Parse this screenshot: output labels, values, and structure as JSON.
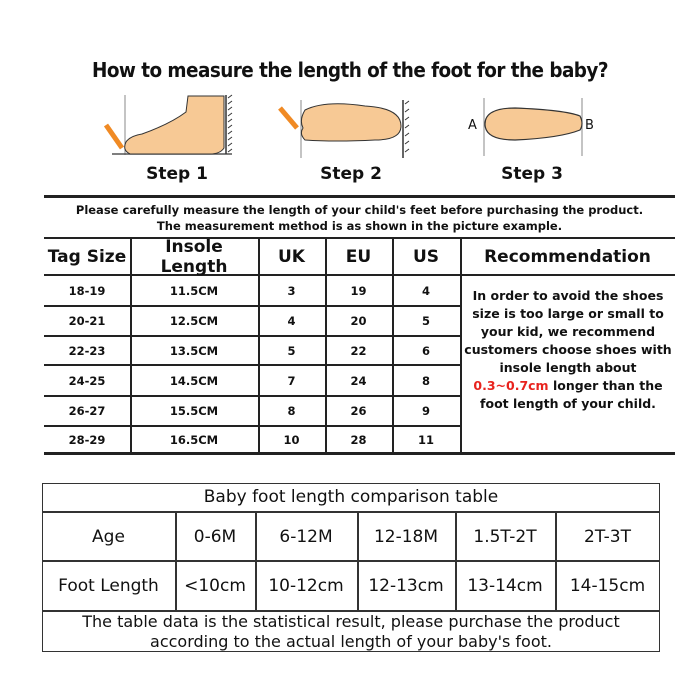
{
  "title": "How to measure the length of the foot for the baby?",
  "steps": [
    {
      "label": "Step 1"
    },
    {
      "label": "Step 2"
    },
    {
      "label": "Step 3",
      "point_a": "A",
      "point_b": "B"
    }
  ],
  "notice": {
    "line1": "Please carefully measure the length of your child's feet before purchasing the product.",
    "line2": "The measurement method is as shown in the picture example."
  },
  "size_table": {
    "headers": [
      "Tag Size",
      "Insole Length",
      "UK",
      "EU",
      "US",
      "Recommendation"
    ],
    "rows": [
      [
        "18-19",
        "11.5CM",
        "3",
        "19",
        "4"
      ],
      [
        "20-21",
        "12.5CM",
        "4",
        "20",
        "5"
      ],
      [
        "22-23",
        "13.5CM",
        "5",
        "22",
        "6"
      ],
      [
        "24-25",
        "14.5CM",
        "7",
        "24",
        "8"
      ],
      [
        "26-27",
        "15.5CM",
        "8",
        "26",
        "9"
      ],
      [
        "28-29",
        "16.5CM",
        "10",
        "28",
        "11"
      ]
    ],
    "recommendation": {
      "before": "In order to avoid the shoes size is too large or small to your kid, we recommend customers choose shoes with insole length about",
      "highlight": "0.3~0.7cm",
      "after": "longer than the foot length of your child.",
      "highlight_color": "#e8231e"
    }
  },
  "baby_table": {
    "title": "Baby foot length comparison table",
    "age_label": "Age",
    "ages": [
      "0-6M",
      "6-12M",
      "12-18M",
      "1.5T-2T",
      "2T-3T"
    ],
    "foot_label": "Foot Length",
    "foot_lengths": [
      "<10cm",
      "10-12cm",
      "12-13cm",
      "13-14cm",
      "14-15cm"
    ],
    "note_line1": "The table data is the statistical result, please purchase the product",
    "note_line2": "according to the actual length of your baby's foot."
  },
  "colors": {
    "skin": "#f7c995",
    "pencil": "#f08a24"
  }
}
